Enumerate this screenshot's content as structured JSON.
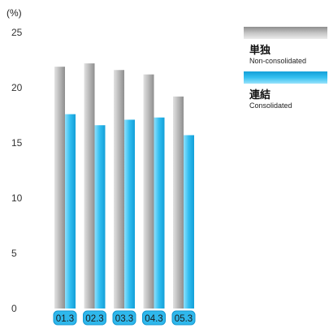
{
  "chart_data": {
    "type": "bar",
    "unit_label": "(%)",
    "categories": [
      "01.3",
      "02.3",
      "03.3",
      "04.3",
      "05.3"
    ],
    "series": [
      {
        "name": "単独",
        "name_en": "Non-consolidated",
        "color": "#a6a6a6",
        "values": [
          21.9,
          22.2,
          21.6,
          21.2,
          19.2
        ]
      },
      {
        "name": "連結",
        "name_en": "Consolidated",
        "color": "#29b6e8",
        "values": [
          17.6,
          16.6,
          17.1,
          17.3,
          15.7
        ]
      }
    ],
    "ylim": [
      0,
      25
    ],
    "yticks": [
      0,
      5,
      10,
      15,
      20,
      25
    ],
    "grid": false,
    "legend_position": "top-right"
  }
}
